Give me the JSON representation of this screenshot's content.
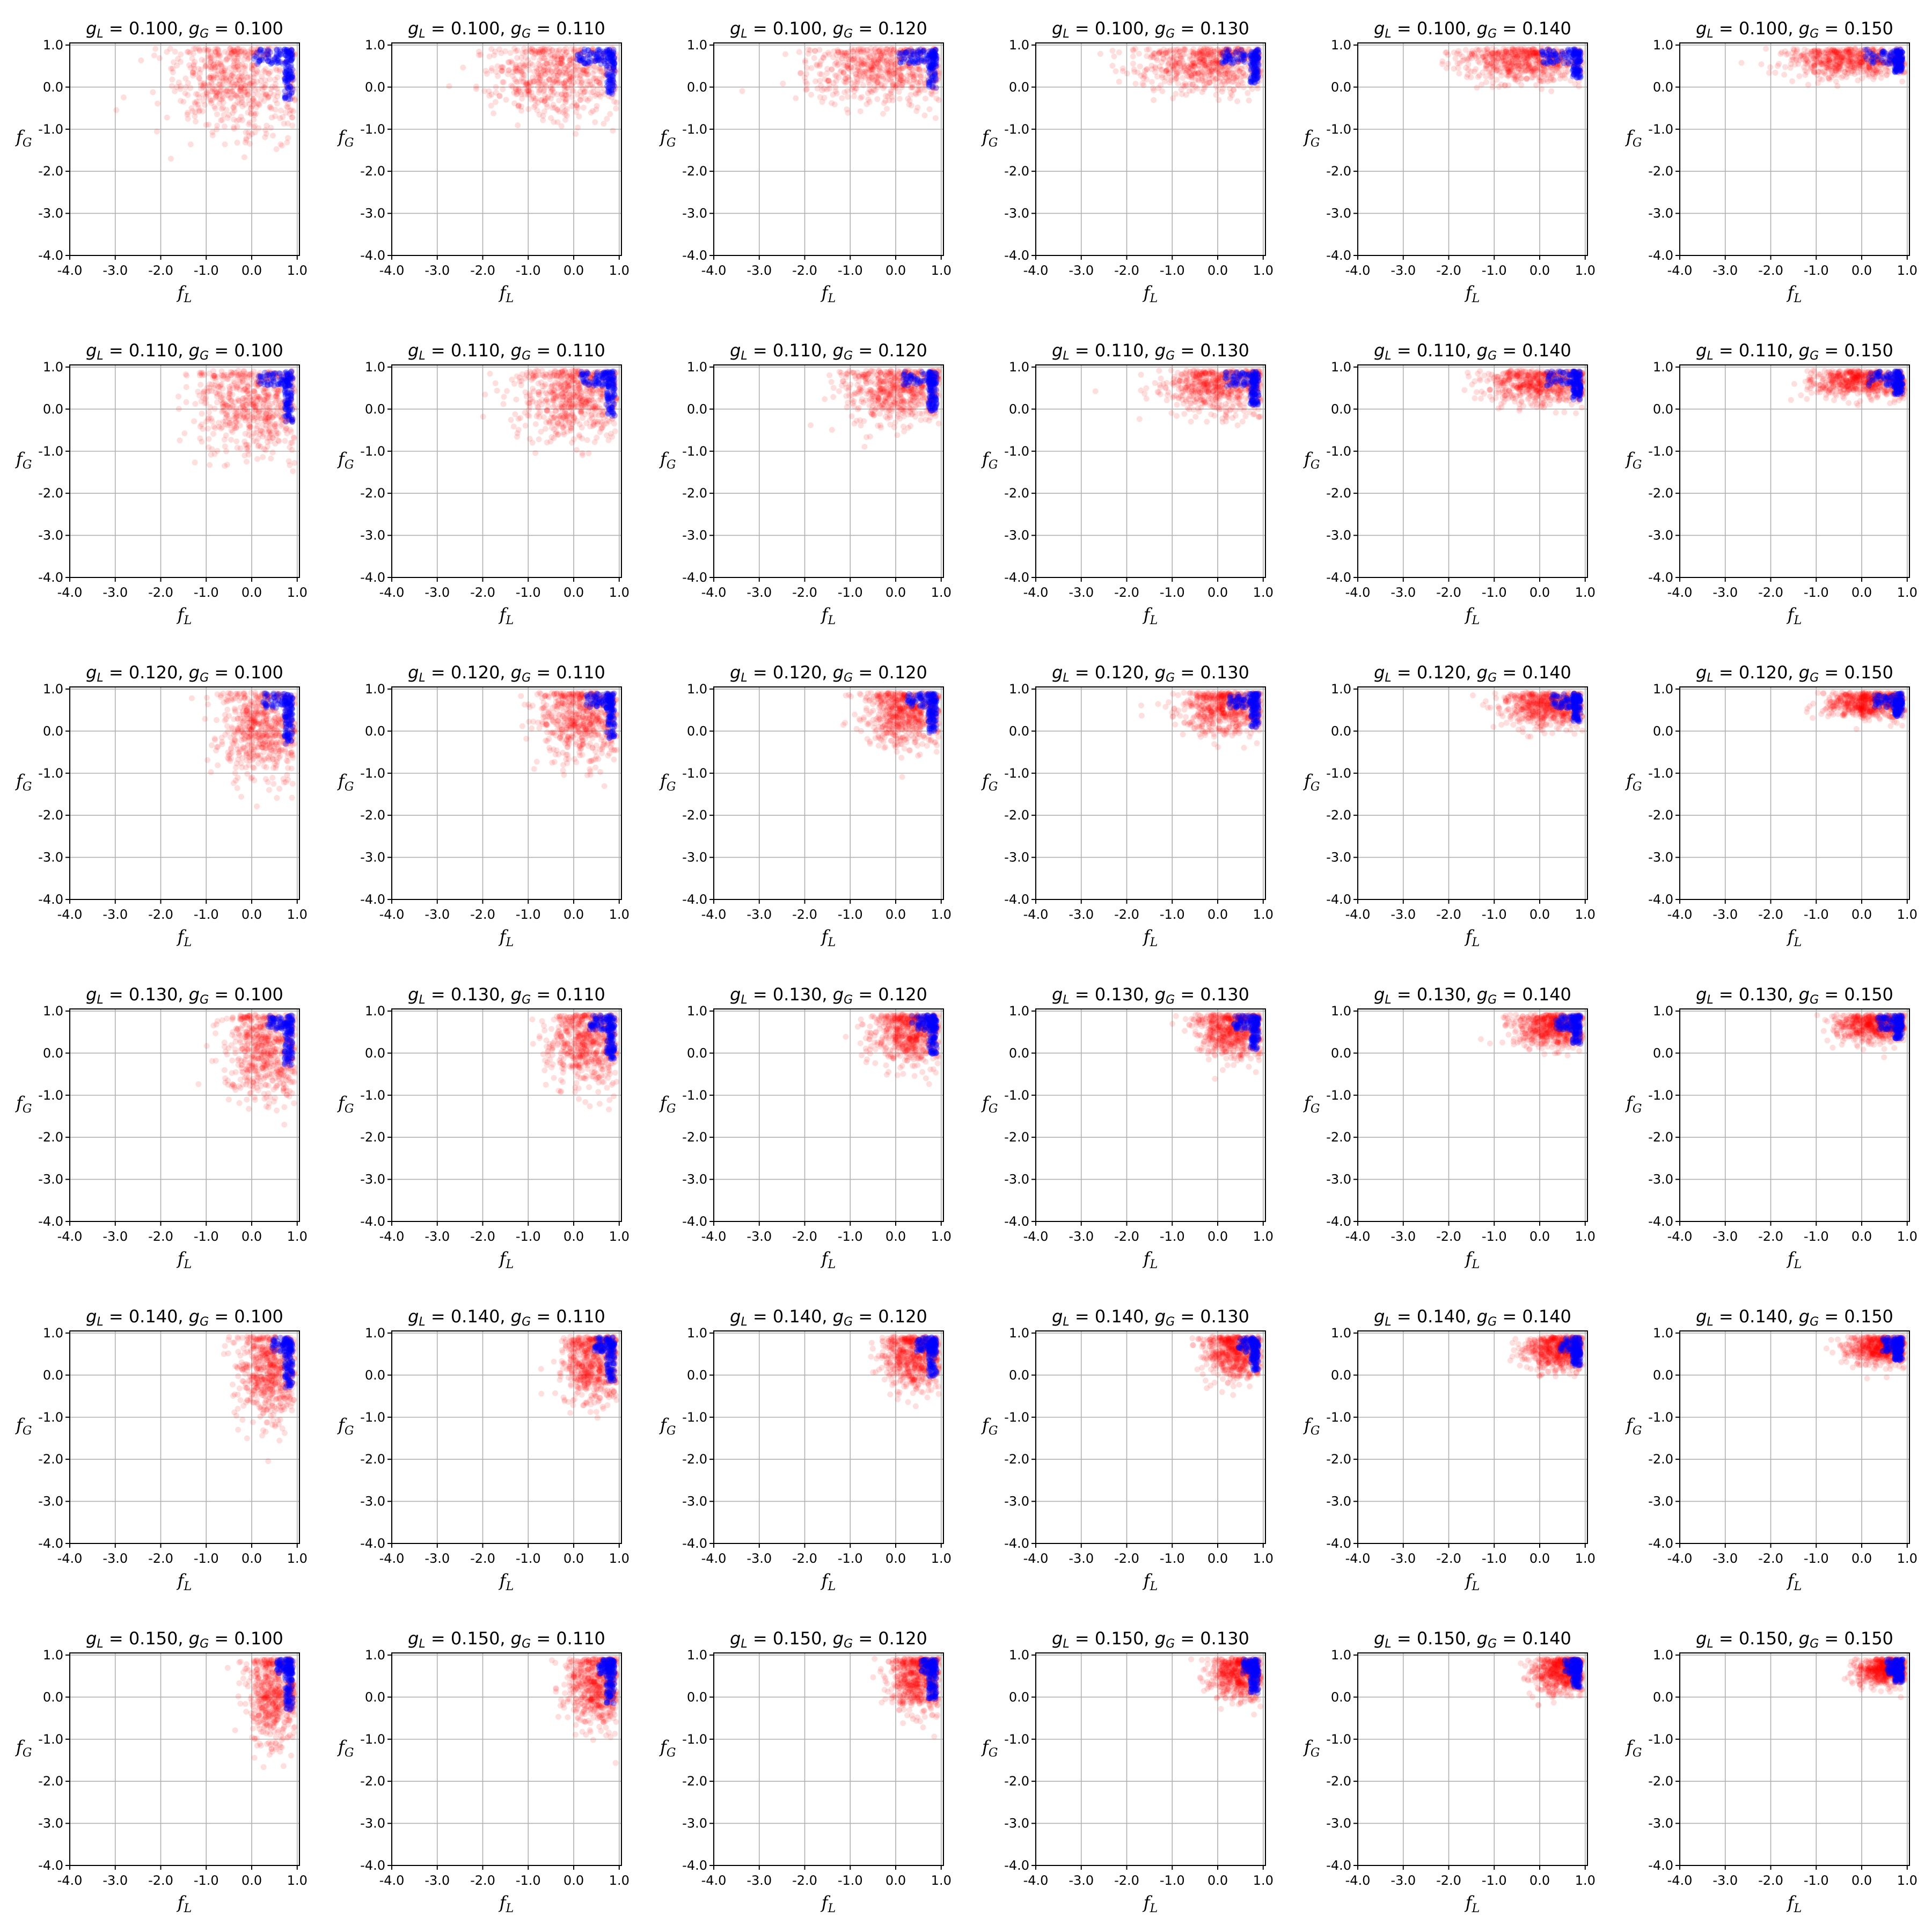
{
  "figure": {
    "point_colors": {
      "red_series": "#ff0000",
      "blue_series": "#0000ff"
    },
    "grid": true,
    "rows_gL": [
      "0.100",
      "0.110",
      "0.120",
      "0.130",
      "0.140",
      "0.150"
    ],
    "cols_gG": [
      "0.100",
      "0.110",
      "0.120",
      "0.130",
      "0.140",
      "0.150"
    ]
  },
  "chart_data": {
    "type": "scatter",
    "layout": "6x6 small multiples",
    "title_template": "g_L = {gL}, g_G = {gG}",
    "title_symbols": {
      "row_symbol": "g",
      "row_sub": "L",
      "col_symbol": "g",
      "col_sub": "G"
    },
    "xlabel": {
      "symbol": "f",
      "sub": "L"
    },
    "ylabel": {
      "symbol": "f",
      "sub": "G"
    },
    "xlim": [
      -4.0,
      1.05
    ],
    "ylim": [
      -4.0,
      1.05
    ],
    "xticks": [
      -4.0,
      -3.0,
      -2.0,
      -1.0,
      0.0,
      1.0
    ],
    "yticks": [
      -4.0,
      -3.0,
      -2.0,
      -1.0,
      0.0,
      1.0
    ],
    "xtick_labels": [
      "-4.0",
      "-3.0",
      "-2.0",
      "-1.0",
      "0.0",
      "1.0"
    ],
    "ytick_labels": [
      "-4.0",
      "-3.0",
      "-2.0",
      "-1.0",
      "0.0",
      "1.0"
    ],
    "grid": true,
    "series_description": "Each panel: semi-transparent red cloud (~600 points) plus a dense blue cluster near f_L≈0.85, f_G in [-0.3, 0.9]. Cloud centers shift right with g_L and upward/tighter with g_G.",
    "panel_cloud_params": {
      "red_center_fL_by_row": [
        -0.3,
        0.0,
        0.2,
        0.3,
        0.4,
        0.5
      ],
      "red_spread_fL_by_row": [
        0.75,
        0.6,
        0.48,
        0.42,
        0.36,
        0.32
      ],
      "red_center_fG_by_col": [
        0.1,
        0.3,
        0.45,
        0.55,
        0.6,
        0.65
      ],
      "red_spread_fG_by_col": [
        0.6,
        0.5,
        0.4,
        0.33,
        0.25,
        0.2
      ],
      "blue_fL_range": [
        0.55,
        0.9
      ],
      "blue_fG_range": [
        -0.3,
        0.9
      ],
      "points_per_cloud": 600,
      "points_per_blue_cluster": 160
    }
  }
}
